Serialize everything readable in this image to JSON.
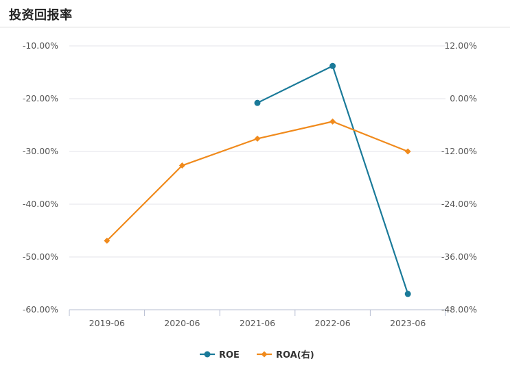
{
  "title": "投资回报率",
  "chart_data": {
    "type": "line",
    "categories": [
      "2019-06",
      "2020-06",
      "2021-06",
      "2022-06",
      "2023-06"
    ],
    "y_left": {
      "ticks": [
        "-10.00%",
        "-20.00%",
        "-30.00%",
        "-40.00%",
        "-50.00%",
        "-60.00%"
      ],
      "range": [
        -60,
        -10
      ]
    },
    "y_right": {
      "ticks": [
        "12.00%",
        "0.00%",
        "-12.00%",
        "-24.00%",
        "-36.00%",
        "-48.00%"
      ],
      "range": [
        -48,
        12
      ]
    },
    "grid": true,
    "legend_position": "bottom",
    "series": [
      {
        "name": "ROE",
        "axis": "left",
        "color": "#1a7a99",
        "marker": "circle",
        "values": [
          null,
          null,
          -20.8,
          -13.8,
          -57.0
        ]
      },
      {
        "name": "ROA(右)",
        "axis": "right",
        "color": "#f08a1c",
        "marker": "diamond",
        "values": [
          -32.3,
          -15.2,
          -9.1,
          -5.2,
          -12.0
        ]
      }
    ]
  }
}
